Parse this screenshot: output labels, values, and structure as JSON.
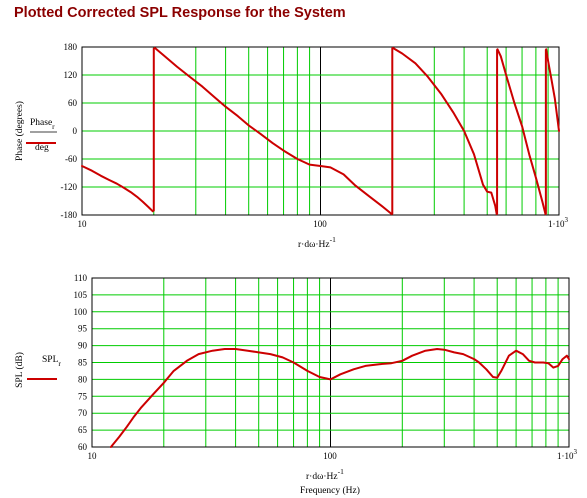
{
  "title": "Plotted Corrected SPL Response for the System",
  "colors": {
    "grid": "#00cc00",
    "curve": "#cc0000",
    "title": "#8b0000",
    "axis": "#000000"
  },
  "chart_data": [
    {
      "type": "line",
      "xscale": "log",
      "xlim": [
        10,
        1000
      ],
      "ylim": [
        -180,
        180
      ],
      "grid": true,
      "ylabel": "Phase (degrees)",
      "xlabel": "r·dω·Hz",
      "xlabel_exp": "-1",
      "legend": {
        "numerator": "Phase",
        "numerator_sub": "r",
        "denominator": "deg"
      },
      "yticks": [
        "-180",
        "-120",
        "-60",
        "0",
        "60",
        "120",
        "180"
      ],
      "xtick_labels": {
        "left": "10",
        "middle": "100",
        "right": "1·10",
        "right_exp": "3"
      },
      "series": [
        {
          "x": [
            10,
            11,
            12,
            13,
            14,
            15,
            16,
            17,
            18,
            19,
            19.8
          ],
          "y": [
            -75,
            -85,
            -96,
            -105,
            -113,
            -122,
            -131,
            -141,
            -152,
            -163,
            -172
          ]
        },
        {
          "x": [
            20.2,
            22,
            25,
            28,
            32,
            36,
            40,
            45,
            50,
            56,
            63,
            70,
            80,
            90,
            100,
            110,
            125,
            140,
            160,
            180,
            199
          ],
          "y": [
            178,
            162,
            138,
            118,
            95,
            72,
            52,
            32,
            12,
            -6,
            -26,
            -42,
            -60,
            -72,
            -75,
            -78,
            -93,
            -117,
            -140,
            -160,
            -178
          ]
        },
        {
          "x": [
            201,
            220,
            250,
            280,
            320,
            360,
            400,
            440,
            480,
            500,
            520,
            540,
            548
          ],
          "y": [
            178,
            166,
            145,
            118,
            80,
            40,
            0,
            -50,
            -115,
            -130,
            -132,
            -160,
            -178
          ]
        },
        {
          "x": [
            552,
            570,
            600,
            650,
            700,
            750,
            800,
            850,
            878
          ],
          "y": [
            175,
            160,
            120,
            60,
            10,
            -50,
            -100,
            -150,
            -178
          ]
        },
        {
          "x": [
            884,
            900,
            930,
            960,
            1000
          ],
          "y": [
            175,
            150,
            110,
            70,
            0
          ]
        }
      ]
    },
    {
      "type": "line",
      "xscale": "log",
      "xlim": [
        10,
        1000
      ],
      "ylim": [
        60,
        110
      ],
      "grid": true,
      "ylabel": "SPL (dB)",
      "xlabel": "r·dω·Hz",
      "xlabel_exp": "-1",
      "xlabel2": "Frequency (Hz)",
      "legend": {
        "name": "SPL",
        "name_sub": "r"
      },
      "yticks": [
        "60",
        "65",
        "70",
        "75",
        "80",
        "85",
        "90",
        "95",
        "100",
        "105",
        "110"
      ],
      "xtick_labels": {
        "left": "10",
        "middle": "100",
        "right": "1·10",
        "right_exp": "3"
      },
      "series": [
        {
          "x": [
            12,
            13,
            14,
            15,
            16,
            18,
            20,
            22,
            25,
            28,
            32,
            36,
            40,
            45,
            50,
            56,
            63,
            70,
            80,
            90,
            100,
            110,
            125,
            140,
            160,
            180,
            200,
            220,
            250,
            280,
            300,
            330,
            360,
            400,
            420,
            450,
            480,
            500,
            520,
            560,
            600,
            640,
            680,
            720,
            780,
            820,
            860,
            900,
            940,
            980,
            1000
          ],
          "y": [
            60,
            63,
            66,
            69,
            71.5,
            75.5,
            79,
            82.5,
            85.5,
            87.5,
            88.5,
            89,
            89,
            88.5,
            88,
            87.5,
            86.5,
            85,
            82.5,
            80.7,
            80,
            81.5,
            83,
            84,
            84.5,
            84.8,
            85.5,
            87,
            88.5,
            89,
            88.8,
            88,
            87.5,
            86,
            85,
            83,
            80.7,
            80.5,
            82.5,
            87,
            88.5,
            87.5,
            85.5,
            85,
            85,
            84.8,
            83.5,
            84,
            86,
            87,
            86
          ]
        }
      ]
    }
  ]
}
